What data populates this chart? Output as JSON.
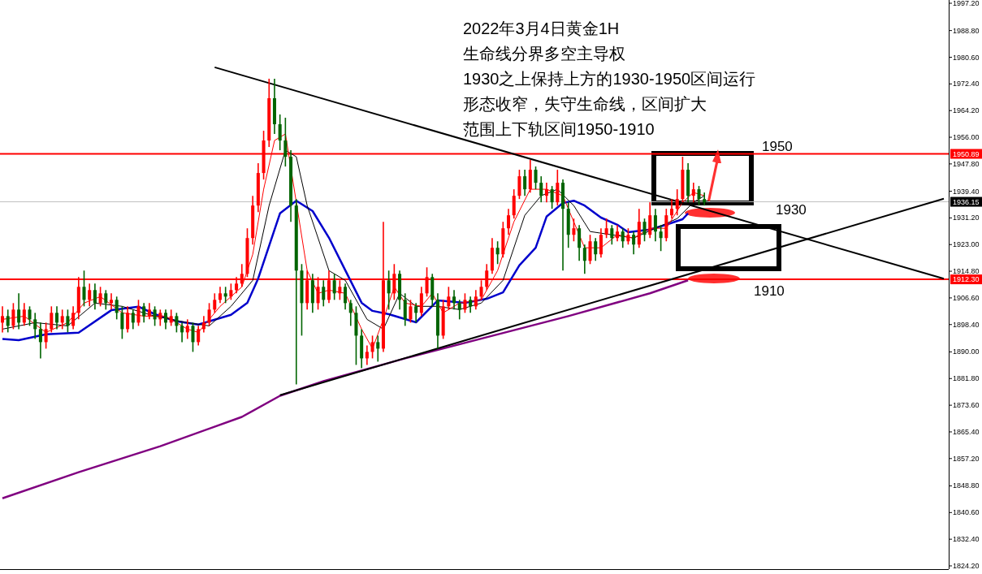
{
  "chart_data": {
    "type": "candlestick",
    "title": "2022年3月4日黄金1H",
    "annotations": [
      "生命线分界多空主导权",
      "1930之上保持上方的1930-1950区间运行",
      "形态收窄，失守生命线，区间扩大",
      "范围上下轨区间1950-1910",
      {
        "text": "1950",
        "y": 1950
      },
      "1930",
      "1910"
    ],
    "categories": [
      null,
      null,
      null,
      null,
      null,
      null,
      null,
      null,
      null,
      null,
      null,
      null,
      null,
      null,
      null,
      null,
      null,
      null,
      null,
      null,
      null,
      null,
      null,
      null,
      null,
      null,
      null,
      null,
      null,
      null,
      null,
      null,
      null,
      null,
      null,
      null,
      null,
      null,
      null,
      null,
      null,
      null,
      null,
      null,
      null,
      null,
      null,
      null,
      null,
      null,
      null,
      null,
      null,
      null,
      null,
      null,
      null,
      null,
      null,
      null,
      null,
      null,
      null,
      null,
      null,
      null,
      null,
      null,
      null,
      null,
      null,
      null,
      null,
      null,
      null,
      null,
      null,
      null,
      null,
      null,
      null,
      null,
      null,
      null,
      null,
      null,
      null,
      null,
      null,
      null,
      null,
      null,
      null,
      null,
      null,
      null,
      null,
      null,
      null,
      null,
      null,
      null,
      null,
      null,
      null,
      null,
      null,
      null,
      null,
      null,
      null,
      null,
      null,
      null,
      null,
      null,
      null,
      null,
      null,
      null,
      null,
      null,
      null,
      null,
      null,
      null,
      null,
      null,
      null,
      null,
      null,
      null,
      null,
      null,
      null,
      null,
      null,
      null,
      null,
      null,
      null,
      null,
      null,
      null,
      null,
      null,
      null,
      null,
      null,
      null,
      null,
      null,
      null,
      null,
      null,
      null,
      null,
      null,
      null,
      null,
      null,
      null,
      null,
      null,
      null,
      null,
      null,
      null,
      null,
      null,
      null,
      null,
      null,
      null
    ],
    "colors": [
      "#ff0000",
      "#006400",
      "#ff0000",
      "#006400",
      "#ff0000",
      "#006400",
      "#006400",
      "#006400",
      "#ff0000",
      "#ff0000",
      "#006400",
      "#ff0000",
      "#006400",
      "#ff0000",
      "#ff0000",
      "#006400",
      "#ff0000",
      "#006400",
      "#ff0000",
      "#006400",
      "#ff0000",
      "#006400",
      "#006400",
      "#ff0000",
      "#006400",
      "#ff0000",
      "#006400",
      "#ff0000",
      "#006400",
      "#ff0000",
      "#006400",
      "#ff0000",
      "#006400",
      "#006400",
      "#ff0000",
      "#006400",
      "#ff0000",
      "#ff0000",
      "#ff0000",
      "#ff0000",
      "#ff0000",
      "#006400",
      "#ff0000",
      "#ff0000",
      "#ff0000",
      "#ff0000",
      "#ff0000",
      "#ff0000",
      "#ff0000",
      "#ff0000",
      "#006400",
      "#006400",
      "#006400",
      "#006400",
      "#006400",
      "#006400",
      "#ff0000",
      "#006400",
      "#ff0000",
      "#006400",
      "#ff0000",
      "#006400",
      "#ff0000",
      "#006400",
      "#006400",
      "#006400",
      "#006400",
      "#ff0000",
      "#ff0000",
      "#006400",
      "#ff0000",
      "#006400",
      "#ff0000",
      "#006400",
      "#006400",
      "#ff0000",
      "#006400",
      "#ff0000",
      "#ff0000",
      "#006400",
      "#006400",
      "#ff0000",
      "#ff0000",
      "#006400",
      "#006400",
      "#ff0000",
      "#006400",
      "#ff0000",
      "#ff0000",
      "#ff0000",
      "#ff0000",
      "#006400",
      "#ff0000",
      "#ff0000",
      "#ff0000",
      "#ff0000",
      "#006400",
      "#ff0000",
      "#006400",
      "#006400",
      "#ff0000",
      "#006400",
      "#ff0000",
      "#006400",
      "#006400",
      "#ff0000",
      "#006400",
      "#006400",
      "#ff0000",
      "#006400",
      "#ff0000",
      "#ff0000",
      "#006400",
      "#ff0000",
      "#006400",
      "#ff0000",
      "#006400",
      "#ff0000",
      "#006400",
      "#ff0000",
      "#006400",
      "#006400",
      "#ff0000",
      "#ff0000",
      "#ff0000",
      "#ff0000",
      "#006400",
      "#ff0000",
      "#006400",
      "#006400",
      null,
      null,
      null,
      null,
      null,
      null,
      null,
      null,
      null,
      null,
      null,
      null,
      null,
      null,
      null,
      null,
      null,
      null,
      null,
      null,
      null,
      null,
      null,
      null,
      null,
      null,
      null,
      null,
      null,
      null,
      null,
      null,
      null,
      null,
      null,
      null,
      null,
      null,
      null,
      null,
      null,
      null,
      null,
      null
    ],
    "ohlc": [
      [
        1899,
        1904,
        1896,
        1901
      ],
      [
        1901,
        1903,
        1896,
        1898
      ],
      [
        1898,
        1905,
        1897,
        1903
      ],
      [
        1903,
        1908,
        1897,
        1899
      ],
      [
        1899,
        1905,
        1898,
        1903
      ],
      [
        1903,
        1904,
        1898,
        1900
      ],
      [
        1900,
        1902,
        1894,
        1897
      ],
      [
        1897,
        1899,
        1888,
        1893
      ],
      [
        1893,
        1899,
        1891,
        1897
      ],
      [
        1897,
        1904,
        1896,
        1902
      ],
      [
        1902,
        1904,
        1897,
        1899
      ],
      [
        1899,
        1903,
        1897,
        1901
      ],
      [
        1901,
        1903,
        1896,
        1898
      ],
      [
        1898,
        1904,
        1897,
        1902
      ],
      [
        1902,
        1913,
        1900,
        1910
      ],
      [
        1910,
        1915,
        1904,
        1906
      ],
      [
        1906,
        1911,
        1904,
        1909
      ],
      [
        1909,
        1911,
        1903,
        1905
      ],
      [
        1905,
        1910,
        1904,
        1908
      ],
      [
        1908,
        1909,
        1903,
        1905
      ],
      [
        1905,
        1908,
        1903,
        1906
      ],
      [
        1906,
        1907,
        1900,
        1902
      ],
      [
        1902,
        1904,
        1894,
        1897
      ],
      [
        1897,
        1904,
        1896,
        1902
      ],
      [
        1902,
        1903,
        1897,
        1899
      ],
      [
        1899,
        1906,
        1898,
        1904
      ],
      [
        1904,
        1905,
        1899,
        1901
      ],
      [
        1901,
        1905,
        1900,
        1903
      ],
      [
        1903,
        1904,
        1898,
        1900
      ],
      [
        1900,
        1903,
        1898,
        1902
      ],
      [
        1902,
        1903,
        1897,
        1899
      ],
      [
        1899,
        1903,
        1898,
        1901
      ],
      [
        1901,
        1902,
        1896,
        1898
      ],
      [
        1898,
        1899,
        1893,
        1896
      ],
      [
        1896,
        1900,
        1894,
        1898
      ],
      [
        1898,
        1899,
        1890,
        1893
      ],
      [
        1893,
        1898,
        1892,
        1897
      ],
      [
        1897,
        1901,
        1896,
        1899
      ],
      [
        1899,
        1905,
        1898,
        1903
      ],
      [
        1903,
        1908,
        1902,
        1906
      ],
      [
        1906,
        1910,
        1905,
        1908
      ],
      [
        1908,
        1910,
        1905,
        1907
      ],
      [
        1907,
        1911,
        1906,
        1909
      ],
      [
        1909,
        1913,
        1908,
        1911
      ],
      [
        1911,
        1917,
        1910,
        1914
      ],
      [
        1914,
        1928,
        1913,
        1925
      ],
      [
        1925,
        1938,
        1923,
        1935
      ],
      [
        1935,
        1948,
        1933,
        1945
      ],
      [
        1945,
        1958,
        1943,
        1955
      ],
      [
        1955,
        1974,
        1953,
        1968
      ],
      [
        1968,
        1974,
        1957,
        1960
      ],
      [
        1960,
        1963,
        1952,
        1955
      ],
      [
        1955,
        1962,
        1947,
        1950
      ],
      [
        1950,
        1952,
        1930,
        1935
      ],
      [
        1935,
        1937,
        1880,
        1915
      ],
      [
        1915,
        1917,
        1895,
        1905
      ],
      [
        1905,
        1915,
        1903,
        1912
      ],
      [
        1912,
        1914,
        1902,
        1905
      ],
      [
        1905,
        1913,
        1903,
        1910
      ],
      [
        1910,
        1912,
        1904,
        1906
      ],
      [
        1906,
        1915,
        1905,
        1912
      ],
      [
        1912,
        1914,
        1906,
        1908
      ],
      [
        1908,
        1912,
        1906,
        1910
      ],
      [
        1910,
        1911,
        1903,
        1905
      ],
      [
        1905,
        1906,
        1898,
        1902
      ],
      [
        1902,
        1904,
        1886,
        1895
      ],
      [
        1895,
        1897,
        1885,
        1888
      ],
      [
        1888,
        1892,
        1886,
        1890
      ],
      [
        1890,
        1895,
        1888,
        1893
      ],
      [
        1893,
        1895,
        1887,
        1891
      ],
      [
        1891,
        1930,
        1890,
        1912
      ],
      [
        1912,
        1915,
        1903,
        1908
      ],
      [
        1908,
        1917,
        1906,
        1914
      ],
      [
        1914,
        1915,
        1903,
        1906
      ],
      [
        1906,
        1908,
        1898,
        1900
      ],
      [
        1900,
        1906,
        1899,
        1904
      ],
      [
        1904,
        1905,
        1899,
        1902
      ],
      [
        1902,
        1910,
        1901,
        1908
      ],
      [
        1908,
        1916,
        1907,
        1913
      ],
      [
        1913,
        1914,
        1904,
        1906
      ],
      [
        1906,
        1908,
        1891,
        1895
      ],
      [
        1895,
        1906,
        1894,
        1904
      ],
      [
        1904,
        1910,
        1903,
        1907
      ],
      [
        1907,
        1909,
        1903,
        1905
      ],
      [
        1905,
        1906,
        1900,
        1903
      ],
      [
        1903,
        1908,
        1902,
        1906
      ],
      [
        1906,
        1907,
        1902,
        1904
      ],
      [
        1904,
        1909,
        1903,
        1907
      ],
      [
        1907,
        1912,
        1906,
        1910
      ],
      [
        1910,
        1917,
        1909,
        1915
      ],
      [
        1915,
        1925,
        1914,
        1922
      ],
      [
        1922,
        1924,
        1917,
        1920
      ],
      [
        1920,
        1930,
        1919,
        1928
      ],
      [
        1928,
        1934,
        1926,
        1932
      ],
      [
        1932,
        1940,
        1931,
        1938
      ],
      [
        1938,
        1946,
        1937,
        1944
      ],
      [
        1944,
        1946,
        1938,
        1940
      ],
      [
        1940,
        1949,
        1939,
        1946
      ],
      [
        1946,
        1947,
        1940,
        1942
      ],
      [
        1942,
        1944,
        1936,
        1938
      ],
      [
        1938,
        1942,
        1936,
        1940
      ],
      [
        1940,
        1941,
        1934,
        1936
      ],
      [
        1936,
        1946,
        1935,
        1942
      ],
      [
        1942,
        1943,
        1915,
        1934
      ],
      [
        1934,
        1936,
        1922,
        1926
      ],
      [
        1926,
        1931,
        1924,
        1928
      ],
      [
        1928,
        1929,
        1918,
        1922
      ],
      [
        1922,
        1923,
        1914,
        1918
      ],
      [
        1918,
        1926,
        1917,
        1924
      ],
      [
        1924,
        1925,
        1918,
        1920
      ],
      [
        1920,
        1928,
        1919,
        1926
      ],
      [
        1926,
        1931,
        1925,
        1928
      ],
      [
        1928,
        1929,
        1923,
        1925
      ],
      [
        1925,
        1929,
        1924,
        1927
      ],
      [
        1927,
        1928,
        1922,
        1924
      ],
      [
        1924,
        1928,
        1923,
        1926
      ],
      [
        1926,
        1927,
        1920,
        1923
      ],
      [
        1923,
        1934,
        1922,
        1930
      ],
      [
        1930,
        1931,
        1924,
        1926
      ],
      [
        1926,
        1936,
        1925,
        1932
      ],
      [
        1932,
        1934,
        1924,
        1927
      ],
      [
        1927,
        1929,
        1921,
        1925
      ],
      [
        1925,
        1934,
        1924,
        1932
      ],
      [
        1932,
        1937,
        1931,
        1934
      ],
      [
        1934,
        1940,
        1932,
        1937
      ],
      [
        1937,
        1950,
        1936,
        1946
      ],
      [
        1946,
        1948,
        1936,
        1938
      ],
      [
        1938,
        1942,
        1936,
        1940
      ],
      [
        1940,
        1941,
        1935,
        1937
      ],
      [
        1937,
        1939,
        1935,
        1936
      ],
      null,
      null,
      null,
      null,
      null,
      null,
      null,
      null,
      null,
      null,
      null,
      null,
      null,
      null,
      null,
      null,
      null,
      null,
      null,
      null,
      null,
      null,
      null,
      null,
      null,
      null,
      null,
      null,
      null,
      null,
      null,
      null,
      null,
      null,
      null,
      null,
      null,
      null,
      null,
      null,
      null,
      null,
      null,
      null
    ],
    "series": [
      {
        "type": "line",
        "color": "#800080",
        "values": [
          1845,
          null,
          null,
          null,
          null,
          null,
          null,
          null,
          null,
          null,
          null,
          null,
          null,
          null,
          1853,
          null,
          null,
          null,
          null,
          null,
          null,
          null,
          null,
          null,
          null,
          null,
          null,
          null,
          null,
          1861,
          null,
          null,
          null,
          null,
          null,
          null,
          null,
          null,
          null,
          null,
          null,
          null,
          null,
          null,
          1870,
          null,
          null,
          null,
          null,
          null,
          null,
          1876.5,
          null,
          null,
          null,
          null,
          null,
          null,
          null,
          1881,
          null,
          null,
          null,
          null,
          null,
          null,
          null,
          null,
          null,
          null,
          null,
          null,
          null,
          null,
          1888,
          null,
          null,
          null,
          null,
          null,
          null,
          null,
          null,
          null,
          null,
          null,
          null,
          null,
          null,
          1894.5,
          null,
          null,
          null,
          null,
          null,
          null,
          null,
          null,
          null,
          null,
          null,
          null,
          null,
          null,
          1901,
          null,
          null,
          null,
          null,
          null,
          null,
          null,
          null,
          null,
          null,
          null,
          null,
          null,
          null,
          1908,
          null,
          null,
          null,
          null,
          null,
          null,
          1912,
          null,
          null,
          null,
          null,
          null,
          null,
          null,
          null,
          null,
          null,
          null,
          null,
          null,
          null,
          null,
          null,
          null,
          null,
          null,
          null,
          null,
          null,
          null,
          null,
          null,
          null,
          null,
          null,
          null,
          null,
          null,
          null,
          null,
          null,
          null,
          null,
          null,
          null,
          null,
          null,
          null,
          null,
          null,
          null,
          null,
          null,
          null
        ]
      },
      {
        "type": "line",
        "color": "#0000cc",
        "values": [
          1894,
          null,
          null,
          1893.6,
          null,
          null,
          null,
          null,
          1895.4,
          null,
          null,
          null,
          null,
          null,
          1895.9,
          null,
          null,
          null,
          null,
          null,
          1902.8,
          null,
          null,
          null,
          null,
          1903.9,
          null,
          null,
          1901.6,
          null,
          null,
          null,
          1899.4,
          null,
          null,
          null,
          1898.4,
          null,
          null,
          null,
          null,
          null,
          1901.4,
          null,
          null,
          1905.1,
          null,
          1912.6,
          null,
          1922.6,
          null,
          1932.6,
          null,
          null,
          1936.5,
          null,
          null,
          1933.3,
          null,
          null,
          1925.1,
          null,
          null,
          1915.1,
          null,
          null,
          1905.1,
          null,
          1902.6,
          null,
          null,
          1901.6,
          null,
          null,
          null,
          null,
          1899.1,
          null,
          null,
          null,
          1905.8,
          null,
          null,
          null,
          null,
          1905.1,
          null,
          null,
          null,
          1906.3,
          null,
          null,
          1908.3,
          null,
          null,
          1916.6,
          null,
          null,
          1922,
          null,
          1931.6,
          null,
          null,
          1935.8,
          null,
          1936.5,
          null,
          1935,
          null,
          null,
          1931.3,
          null,
          null,
          1929.1,
          null,
          1926.8,
          null,
          null,
          null,
          1927.6,
          null,
          null,
          1929.1,
          null,
          null,
          1930.8,
          1932.6,
          null,
          null,
          null,
          null,
          null,
          null,
          null,
          null,
          null,
          null,
          null,
          null,
          null,
          null,
          null,
          null,
          null,
          null,
          null,
          null,
          null,
          null,
          null,
          null,
          null,
          null,
          null,
          null,
          null,
          null,
          null,
          null,
          null,
          null,
          null,
          null,
          null,
          null,
          null,
          null,
          null,
          null,
          null,
          null,
          null,
          null,
          null
        ]
      },
      {
        "type": "line",
        "color": "#000000",
        "values": [
          1897,
          null,
          null,
          null,
          null,
          null,
          1899,
          null,
          null,
          null,
          null,
          null,
          1898,
          null,
          null,
          null,
          null,
          1905,
          null,
          null,
          null,
          null,
          1904,
          null,
          null,
          null,
          null,
          null,
          1901,
          null,
          null,
          null,
          null,
          null,
          1899,
          null,
          null,
          null,
          1898,
          null,
          null,
          null,
          1904,
          null,
          null,
          null,
          1912,
          null,
          null,
          1935,
          null,
          null,
          1952,
          null,
          1950,
          null,
          1935,
          null,
          null,
          null,
          1915,
          null,
          null,
          1912,
          null,
          null,
          null,
          1900,
          null,
          null,
          1897,
          null,
          null,
          1908,
          null,
          null,
          1904,
          null,
          null,
          null,
          1904,
          null,
          null,
          null,
          1903,
          null,
          null,
          null,
          1905,
          null,
          null,
          null,
          1912,
          null,
          null,
          null,
          1932,
          null,
          null,
          1938,
          null,
          null,
          1940,
          null,
          null,
          1935,
          null,
          null,
          1927,
          null,
          null,
          null,
          1926,
          null,
          null,
          null,
          1925,
          null,
          null,
          null,
          1928,
          null,
          null,
          null,
          1931,
          null,
          null,
          1936,
          null,
          1938,
          null,
          null,
          null,
          null,
          null,
          null,
          null,
          null,
          null,
          null,
          null,
          null,
          null,
          null,
          null,
          null,
          null,
          null,
          null,
          null,
          null,
          null,
          null,
          null,
          null,
          null,
          null,
          null,
          null,
          null,
          null,
          null,
          null,
          null,
          null,
          null,
          null,
          null,
          null,
          null,
          null,
          null,
          null,
          null
        ]
      },
      {
        "type": "line",
        "color": "#ff0000",
        "values": [
          1900,
          null,
          null,
          null,
          1901,
          null,
          null,
          null,
          1896,
          null,
          null,
          null,
          1899,
          null,
          null,
          1905,
          null,
          null,
          1907,
          null,
          null,
          null,
          1902,
          null,
          null,
          null,
          1901,
          null,
          null,
          null,
          1901,
          null,
          null,
          null,
          1897,
          null,
          1896,
          null,
          null,
          null,
          1904,
          null,
          null,
          null,
          1910,
          null,
          1920,
          null,
          1940,
          null,
          1955,
          null,
          1957,
          null,
          null,
          null,
          1915,
          null,
          1908,
          null,
          1909,
          null,
          null,
          1908,
          null,
          null,
          1897,
          null,
          1891,
          null,
          1900,
          null,
          1910,
          null,
          1905,
          null,
          null,
          1904,
          null,
          1908,
          null,
          1902,
          null,
          null,
          1905,
          null,
          null,
          null,
          1906,
          null,
          null,
          1915,
          null,
          null,
          1930,
          null,
          null,
          1940,
          null,
          null,
          1940,
          null,
          null,
          1938,
          null,
          1930,
          null,
          1922,
          null,
          null,
          1922,
          null,
          null,
          1926,
          null,
          null,
          1925,
          null,
          null,
          1928,
          null,
          null,
          1928,
          null,
          null,
          1936,
          null,
          1939,
          null,
          1938,
          null,
          null,
          null,
          null,
          null,
          null,
          null,
          null,
          null,
          null,
          null,
          null,
          null,
          null,
          null,
          null,
          null,
          null,
          null,
          null,
          null,
          null,
          null,
          null,
          null,
          null,
          null,
          null,
          null,
          null,
          null,
          null,
          null,
          null,
          null,
          null,
          null,
          null,
          null,
          null,
          null,
          null,
          null,
          null
        ]
      },
      {
        "type": "line",
        "color": "#000000",
        "values": [
          null,
          null,
          null,
          null,
          null,
          null,
          null,
          null,
          null,
          null,
          null,
          null,
          null,
          null,
          null,
          null,
          null,
          null,
          null,
          null,
          null,
          null,
          null,
          null,
          null,
          null,
          null,
          null,
          null,
          null,
          null,
          null,
          null,
          null,
          null,
          null,
          null,
          null,
          null,
          1977.5,
          null,
          null,
          null,
          null,
          null,
          null,
          null,
          null,
          null,
          null,
          null,
          null,
          null,
          null,
          null,
          null,
          null,
          null,
          null,
          null,
          null,
          null,
          null,
          null,
          null,
          null,
          null,
          null,
          null,
          null,
          null,
          null,
          null,
          null,
          null,
          null,
          null,
          null,
          null,
          null,
          null,
          null,
          null,
          null,
          null,
          null,
          null,
          null,
          null,
          null,
          null,
          null,
          null,
          null,
          null,
          null,
          null,
          null,
          null,
          null,
          null,
          null,
          null,
          null,
          null,
          null,
          null,
          null,
          null,
          null,
          null,
          null,
          null,
          null,
          null,
          null,
          null,
          null,
          null,
          null,
          null,
          null,
          null,
          null,
          null,
          null,
          null,
          null,
          null,
          null,
          null,
          null,
          null,
          null,
          null,
          null,
          null,
          null,
          null,
          null,
          null,
          null,
          null,
          null,
          null,
          null,
          null,
          null,
          null,
          null,
          null,
          null,
          null,
          null,
          null,
          null,
          null,
          null,
          null,
          null,
          null,
          null,
          null,
          null,
          null,
          null,
          null,
          null,
          null,
          null,
          null,
          null,
          null,
          1912.5
        ]
      },
      {
        "type": "line",
        "color": "#000000",
        "values": [
          null,
          null,
          null,
          null,
          null,
          null,
          null,
          null,
          null,
          null,
          null,
          null,
          null,
          null,
          null,
          null,
          null,
          null,
          null,
          null,
          null,
          null,
          null,
          null,
          null,
          null,
          null,
          null,
          null,
          null,
          null,
          null,
          null,
          null,
          null,
          null,
          null,
          null,
          null,
          null,
          null,
          null,
          null,
          null,
          null,
          null,
          null,
          null,
          null,
          null,
          null,
          1876.7,
          null,
          null,
          null,
          null,
          null,
          null,
          null,
          null,
          null,
          null,
          null,
          null,
          null,
          null,
          null,
          null,
          null,
          null,
          null,
          null,
          null,
          null,
          null,
          null,
          null,
          null,
          null,
          null,
          null,
          null,
          null,
          null,
          null,
          null,
          null,
          null,
          null,
          null,
          null,
          null,
          null,
          null,
          null,
          null,
          null,
          null,
          null,
          null,
          null,
          null,
          null,
          null,
          null,
          null,
          null,
          null,
          null,
          null,
          null,
          null,
          null,
          null,
          null,
          null,
          null,
          null,
          null,
          null,
          null,
          null,
          null,
          null,
          null,
          null,
          null,
          null,
          null,
          null,
          null,
          null,
          null,
          null,
          null,
          null,
          null,
          null,
          null,
          null,
          null,
          null,
          null,
          null,
          null,
          null,
          null,
          null,
          null,
          null,
          null,
          null,
          null,
          null,
          null,
          null,
          null,
          null,
          null,
          null,
          null,
          null,
          null,
          null,
          null,
          null,
          null,
          null,
          null,
          null,
          null,
          null,
          null,
          1937.1
        ]
      }
    ],
    "ref_lines": [
      {
        "axis": "y",
        "value": 1950.89,
        "label": "1950.89",
        "color": "#ff0000"
      },
      {
        "axis": "y",
        "value": 1936.15,
        "label": "1936.15",
        "color": "#c0c0c0"
      },
      {
        "axis": "y",
        "value": 1912.3,
        "label": "1912.30",
        "color": "#ff0000"
      }
    ],
    "ylim": [
      1823.2,
      1998.2
    ],
    "yticks": [
      {
        "value": 1997.2,
        "label": "1997.20"
      },
      {
        "value": 1988.8,
        "label": "1988.80"
      },
      {
        "value": 1980.6,
        "label": "1980.60"
      },
      {
        "value": 1972.4,
        "label": "1972.40"
      },
      {
        "value": 1964.2,
        "label": "1964.20"
      },
      {
        "value": 1956.0,
        "label": "1956.00"
      },
      {
        "value": 1947.8,
        "label": "1947.80"
      },
      {
        "value": 1939.4,
        "label": "1939.40"
      },
      {
        "value": 1931.2,
        "label": "1931.20"
      },
      {
        "value": 1923.0,
        "label": "1923.00"
      },
      {
        "value": 1914.8,
        "label": "1914.80"
      },
      {
        "value": 1906.6,
        "label": "1906.60"
      },
      {
        "value": 1898.4,
        "label": "1898.40"
      },
      {
        "value": 1890.0,
        "label": "1890.00"
      },
      {
        "value": 1881.8,
        "label": "1881.80"
      },
      {
        "value": 1873.6,
        "label": "1873.60"
      },
      {
        "value": 1865.4,
        "label": "1865.40"
      },
      {
        "value": 1857.2,
        "label": "1857.20"
      },
      {
        "value": 1848.8,
        "label": "1848.80"
      },
      {
        "value": 1840.6,
        "label": "1840.60"
      },
      {
        "value": 1832.4,
        "label": "1832.40"
      },
      {
        "value": 1824.2,
        "label": "1824.20"
      }
    ],
    "tick_labels": "y"
  }
}
